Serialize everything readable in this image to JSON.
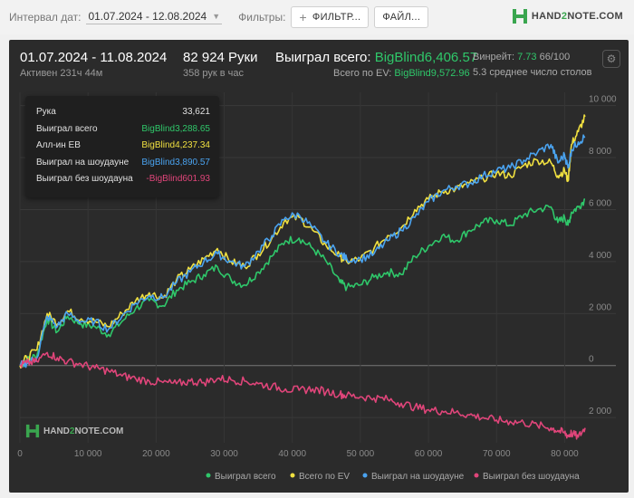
{
  "topbar": {
    "interval_label": "Интервал дат:",
    "interval_value": "01.07.2024 - 12.08.2024",
    "filters_label": "Фильтры:",
    "filter_button": "ФИЛЬТР...",
    "file_button": "ФАЙЛ...",
    "logo_h2": "H2",
    "logo_text_a": "HAND",
    "logo_text_b": "2",
    "logo_text_c": "NOTE.COM"
  },
  "summary": {
    "date_range": "01.07.2024 - 11.08.2024",
    "active": "Активен 231ч 44м",
    "hands": "82 924 Руки",
    "hands_per_hour": "358 рук в час",
    "won_total_label": "Выиграл всего: ",
    "won_total_value": "BigBlind6,406.57",
    "ev_label": "Всего по EV: ",
    "ev_value": "BigBlind9,572.96",
    "winrate_label": "Винрейт: ",
    "winrate_value": "7.73",
    "winrate_extra": " 66/100",
    "avg_tables": "5.3 среднее число столов"
  },
  "tooltip": {
    "rows": [
      {
        "label": "Рука",
        "value": "33,621",
        "color": "#e0e0e0"
      },
      {
        "label": "Выиграл всего",
        "value": "BigBlind3,288.65",
        "color": "#2fc76a"
      },
      {
        "label": "Алл-ин EB",
        "value": "BigBlind4,237.34",
        "color": "#f0e040"
      },
      {
        "label": "Выиграл на шоудауне",
        "value": "BigBlind3,890.57",
        "color": "#4aa3f0"
      },
      {
        "label": "Выиграл без шоудауна",
        "value": "-BigBlind601.93",
        "color": "#e0457a"
      }
    ]
  },
  "watermark": {
    "text_a": "HAND",
    "text_b": "2",
    "text_c": "NOTE.COM"
  },
  "chart_data": {
    "type": "line",
    "x_ticks": [
      0,
      10000,
      20000,
      30000,
      40000,
      50000,
      60000,
      70000,
      80000
    ],
    "x_tick_labels": [
      "0",
      "10 000",
      "20 000",
      "30 000",
      "40 000",
      "50 000",
      "60 000",
      "70 000",
      "80 000"
    ],
    "xlim": [
      0,
      83000
    ],
    "y_ticks": [
      -2000,
      0,
      2000,
      4000,
      6000,
      8000,
      10000
    ],
    "y_tick_labels": [
      "2 000",
      "0",
      "2 000",
      "4 000",
      "6 000",
      "8 000",
      "10 000"
    ],
    "ylim": [
      -2900,
      10300
    ],
    "grid": true,
    "legend_position": "bottom-right",
    "x": [
      0,
      1000,
      2500,
      4000,
      5500,
      7000,
      9000,
      11000,
      13000,
      15000,
      17000,
      19000,
      21000,
      23000,
      25000,
      27000,
      29000,
      31000,
      33000,
      35000,
      37000,
      39000,
      41000,
      43000,
      45000,
      47000,
      48000,
      50000,
      52000,
      54000,
      56000,
      58000,
      60000,
      62000,
      64000,
      66000,
      68000,
      70000,
      72000,
      74000,
      76000,
      78000,
      79000,
      80000,
      80500,
      81000,
      82000,
      83000
    ],
    "series": [
      {
        "name": "Выиграл всего",
        "color": "#2fc76a",
        "values": [
          0,
          200,
          400,
          1800,
          1300,
          1900,
          1600,
          1500,
          1200,
          1700,
          2200,
          2500,
          2300,
          2900,
          3200,
          3500,
          3800,
          3300,
          3100,
          3600,
          4200,
          4800,
          4900,
          4500,
          4000,
          3200,
          3000,
          3100,
          3400,
          3600,
          3500,
          4200,
          4600,
          5000,
          4800,
          5200,
          5500,
          5600,
          5400,
          5800,
          6000,
          6100,
          5500,
          5700,
          5400,
          5900,
          6100,
          6400
        ]
      },
      {
        "name": "Всего по EV",
        "color": "#f0e040",
        "values": [
          0,
          300,
          600,
          2000,
          1600,
          2100,
          1800,
          1700,
          1500,
          2000,
          2500,
          2800,
          2600,
          3300,
          3700,
          4100,
          4500,
          4000,
          3800,
          4300,
          4900,
          5600,
          5700,
          5200,
          4600,
          4200,
          4000,
          4100,
          4500,
          5000,
          5300,
          6000,
          6400,
          6700,
          6800,
          7000,
          7200,
          7400,
          7300,
          7700,
          7900,
          7800,
          7300,
          7500,
          7100,
          8500,
          9000,
          9572
        ]
      },
      {
        "name": "Выиграл на шоудауне",
        "color": "#4aa3f0",
        "values": [
          0,
          100,
          300,
          1900,
          1500,
          2000,
          1700,
          1700,
          1400,
          1900,
          2400,
          2700,
          2600,
          3200,
          3600,
          4000,
          4300,
          4000,
          3800,
          4400,
          5000,
          5700,
          5800,
          5300,
          4700,
          4300,
          4100,
          4100,
          4300,
          4800,
          5200,
          5700,
          6300,
          6700,
          6900,
          7000,
          7300,
          7500,
          7600,
          7900,
          8200,
          8500,
          7800,
          8100,
          7600,
          8300,
          8600,
          8800
        ]
      },
      {
        "name": "Выиграл без шоудауна",
        "color": "#e0457a",
        "values": [
          0,
          100,
          150,
          500,
          300,
          150,
          50,
          -100,
          -200,
          -400,
          -500,
          -600,
          -650,
          -700,
          -600,
          -650,
          -500,
          -550,
          -600,
          -700,
          -800,
          -900,
          -950,
          -900,
          -1000,
          -1100,
          -1150,
          -1200,
          -1250,
          -1300,
          -1450,
          -1600,
          -1700,
          -1750,
          -1800,
          -1900,
          -2000,
          -2100,
          -2150,
          -2200,
          -2300,
          -2400,
          -2500,
          -2600,
          -2700,
          -2600,
          -2750,
          -2400
        ]
      }
    ]
  }
}
